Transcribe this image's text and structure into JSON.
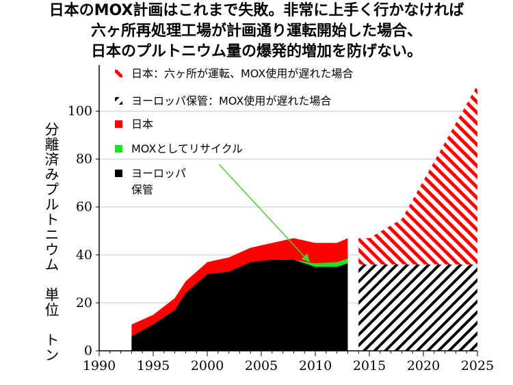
{
  "title_lines": [
    "日本のMOX計画はこれまで失敗。非常に上手く行かなければ",
    "六ヶ所再処理工場が計画通り運転開始した場合、",
    "日本のプルトニウム量の爆発的増加を防げない。"
  ],
  "chart_data": {
    "type": "area",
    "ylabel": "分離済みプルトニウム　単位　トン",
    "xlabel": "",
    "xlim": [
      1990,
      2025
    ],
    "ylim": [
      0,
      115
    ],
    "xticks": [
      1990,
      1995,
      2000,
      2005,
      2010,
      2015,
      2020,
      2025
    ],
    "yticks": [
      0,
      20,
      40,
      60,
      80,
      100
    ],
    "historical": {
      "x": [
        1993,
        1995,
        1997,
        1998,
        2000,
        2002,
        2004,
        2006,
        2008,
        2010,
        2012,
        2013
      ],
      "europe": [
        6,
        11,
        17,
        24,
        32,
        33,
        37,
        38,
        38,
        35,
        35,
        36.5
      ],
      "mox_recycled": [
        0,
        0,
        0,
        0,
        0,
        0,
        0,
        0,
        0,
        1.5,
        2,
        2
      ],
      "japan_total": [
        11,
        15,
        22,
        29,
        37,
        39,
        43,
        45,
        47,
        45,
        45,
        47
      ]
    },
    "projection": {
      "x": [
        2014,
        2015,
        2018,
        2025
      ],
      "europe_flat": 36,
      "japan_total": [
        47,
        47,
        55,
        111
      ]
    },
    "series": [
      {
        "name": "日本：六ヶ所が運転、MOX使用が遅れた場合",
        "style": "red-hatch",
        "color": "#ff0000"
      },
      {
        "name": "ヨーロッパ保管：MOX使用が遅れた場合",
        "style": "black-hatch",
        "color": "#000000"
      },
      {
        "name": "日本",
        "style": "solid",
        "color": "#ff0000"
      },
      {
        "name": "MOXとしてリサイクル",
        "style": "solid",
        "color": "#22e022"
      },
      {
        "name": "ヨーロッパ保管",
        "style": "solid",
        "color": "#000000",
        "lines": [
          "ヨーロッパ",
          "保管"
        ]
      }
    ]
  }
}
